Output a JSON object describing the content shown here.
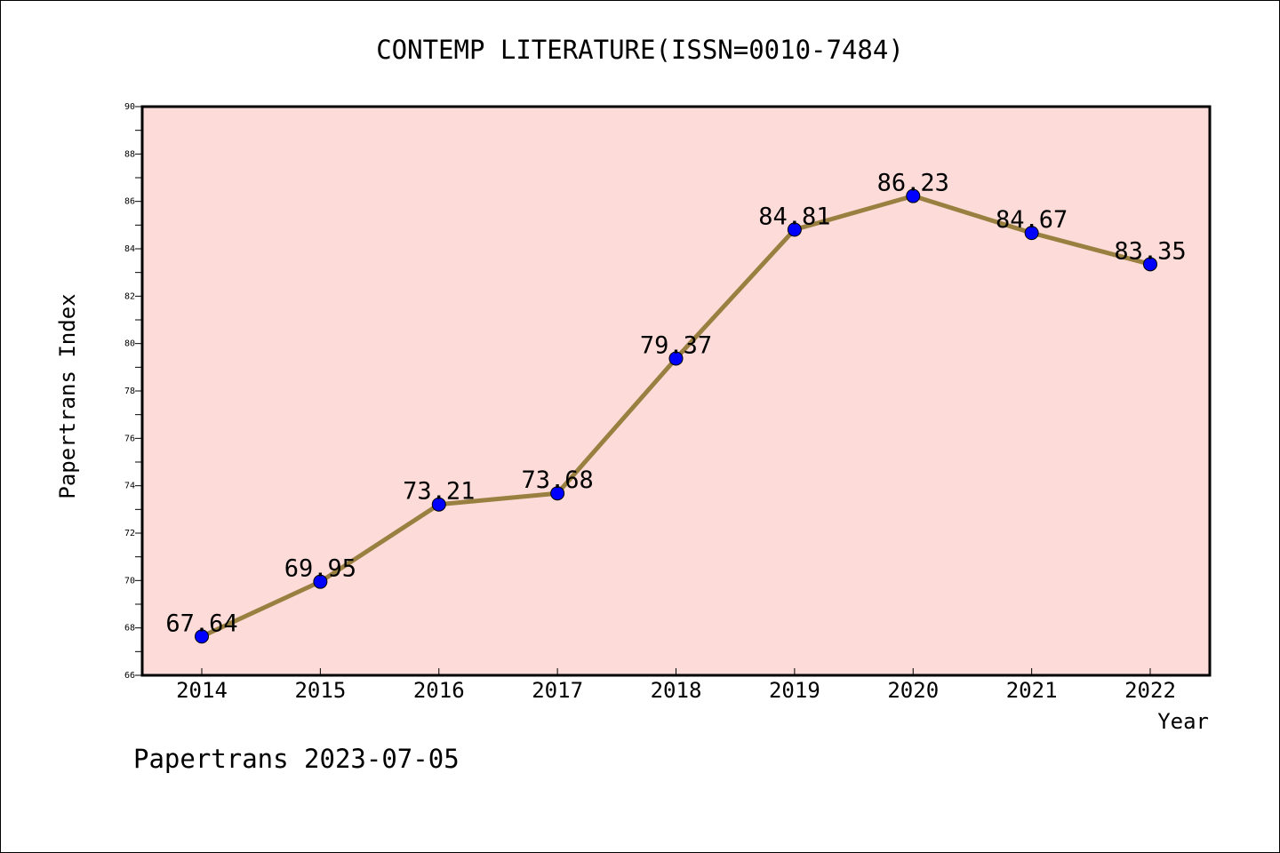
{
  "chart_data": {
    "type": "line",
    "title": "CONTEMP LITERATURE(ISSN=0010-7484)",
    "xlabel": "Year",
    "ylabel": "Papertrans Index",
    "footer": "Papertrans 2023-07-05",
    "x": [
      "2014",
      "2015",
      "2016",
      "2017",
      "2018",
      "2019",
      "2020",
      "2021",
      "2022"
    ],
    "values": [
      67.64,
      69.95,
      73.21,
      73.68,
      79.37,
      84.81,
      86.23,
      84.67,
      83.35
    ],
    "data_labels": [
      "67.64",
      "69.95",
      "73.21",
      "73.68",
      "79.37",
      "84.81",
      "86.23",
      "84.67",
      "83.35"
    ],
    "ylim": [
      66,
      90
    ],
    "yticks": [
      "66",
      "68",
      "70",
      "72",
      "74",
      "76",
      "78",
      "80",
      "82",
      "84",
      "86",
      "88",
      "90"
    ],
    "grid": false,
    "colors": {
      "plot_background": "#fddbd8",
      "line": "#9a8040",
      "marker": "#0000ff"
    }
  }
}
